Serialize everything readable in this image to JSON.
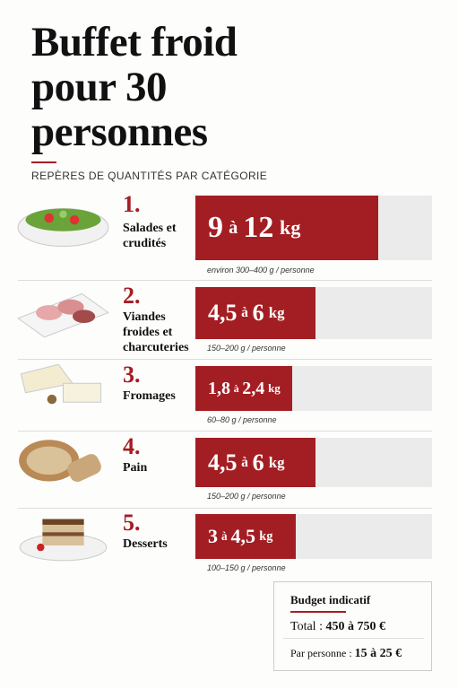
{
  "title": "Buffet froid pour 30 personnes",
  "subtitle": "REPÈRES DE QUANTITÉS PAR CATÉGORIE",
  "categories": [
    {
      "number": "1.",
      "name": "Salades et crudités",
      "min": "9",
      "sep": "à",
      "max": "12",
      "unit": "kg",
      "note": "environ 300–400 g / personne"
    },
    {
      "number": "2.",
      "name": "Viandes froides et charcuteries",
      "min": "4,5",
      "sep": "à",
      "max": "6",
      "unit": "kg",
      "note": "150–200 g / personne"
    },
    {
      "number": "3.",
      "name": "Fromages",
      "min": "1,8",
      "sep": "à",
      "max": "2,4",
      "unit": "kg",
      "note": "60–80 g / personne"
    },
    {
      "number": "4.",
      "name": "Pain",
      "min": "4,5",
      "sep": "à",
      "max": "6",
      "unit": "kg",
      "note": "150–200 g / personne"
    },
    {
      "number": "5.",
      "name": "Desserts",
      "min": "3",
      "sep": "à",
      "max": "4,5",
      "unit": "kg",
      "note": "100–150 g / personne"
    }
  ],
  "budget": {
    "title": "Budget indicatif",
    "total_label": "Total :",
    "total_value": "450 à 750 €",
    "per_label": "Par personne :",
    "per_value": "15 à 25 €"
  }
}
